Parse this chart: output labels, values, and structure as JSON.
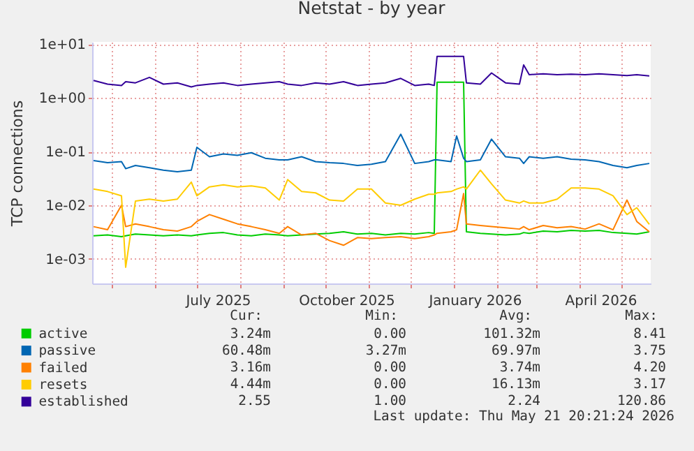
{
  "chart_data": {
    "type": "line",
    "title": "Netstat - by year",
    "ylabel": "TCP connections",
    "x": [
      "2025-04-18",
      "2025-04-28",
      "2025-05-08",
      "2025-05-11",
      "2025-05-18",
      "2025-05-28",
      "2025-06-07",
      "2025-06-17",
      "2025-06-27",
      "2025-07-01",
      "2025-07-10",
      "2025-07-20",
      "2025-07-30",
      "2025-08-09",
      "2025-08-19",
      "2025-08-29",
      "2025-09-04",
      "2025-09-14",
      "2025-09-24",
      "2025-10-04",
      "2025-10-14",
      "2025-10-24",
      "2025-11-03",
      "2025-11-13",
      "2025-11-24",
      "2025-12-04",
      "2025-12-14",
      "2025-12-18",
      "2025-12-20",
      "2025-12-30",
      "2026-01-03",
      "2026-01-08",
      "2026-01-10",
      "2026-01-20",
      "2026-01-28",
      "2026-02-07",
      "2026-02-17",
      "2026-02-20",
      "2026-02-24",
      "2026-03-06",
      "2026-03-16",
      "2026-03-26",
      "2026-04-05",
      "2026-04-15",
      "2026-04-25",
      "2026-05-05",
      "2026-05-12",
      "2026-05-21"
    ],
    "series": [
      {
        "name": "active",
        "color": "#00cc00",
        "values": [
          0.0027,
          0.0028,
          0.0026,
          0.0027,
          0.0029,
          0.0028,
          0.0027,
          0.0028,
          0.0027,
          0.0028,
          0.003,
          0.0031,
          0.0028,
          0.0027,
          0.0029,
          0.0028,
          0.0027,
          0.0028,
          0.0029,
          0.003,
          0.0032,
          0.0029,
          0.003,
          0.0028,
          0.003,
          0.0029,
          0.0031,
          0.003,
          1.95,
          1.95,
          1.95,
          1.95,
          0.0032,
          0.003,
          0.0029,
          0.0028,
          0.0029,
          0.0031,
          0.003,
          0.0033,
          0.0032,
          0.0034,
          0.0033,
          0.0034,
          0.0031,
          0.003,
          0.0029,
          0.0032
        ]
      },
      {
        "name": "passive",
        "color": "#0066b3",
        "values": [
          0.068,
          0.062,
          0.065,
          0.048,
          0.055,
          0.05,
          0.045,
          0.042,
          0.045,
          0.12,
          0.08,
          0.09,
          0.085,
          0.095,
          0.075,
          0.07,
          0.07,
          0.08,
          0.065,
          0.062,
          0.06,
          0.055,
          0.058,
          0.065,
          0.21,
          0.06,
          0.065,
          0.07,
          0.07,
          0.065,
          0.195,
          0.075,
          0.065,
          0.07,
          0.17,
          0.08,
          0.075,
          0.06,
          0.08,
          0.075,
          0.08,
          0.072,
          0.07,
          0.065,
          0.055,
          0.05,
          0.055,
          0.06
        ]
      },
      {
        "name": "failed",
        "color": "#ff8000",
        "values": [
          0.004,
          0.0035,
          0.01,
          0.004,
          0.0045,
          0.004,
          0.0035,
          0.0033,
          0.004,
          0.005,
          0.0067,
          0.0055,
          0.0045,
          0.004,
          0.0035,
          0.003,
          0.004,
          0.0028,
          0.003,
          0.0022,
          0.0018,
          0.0025,
          0.0024,
          0.0025,
          0.0026,
          0.0024,
          0.0026,
          0.0028,
          0.003,
          0.0032,
          0.0035,
          0.0165,
          0.0045,
          0.0042,
          0.004,
          0.0038,
          0.0036,
          0.004,
          0.0035,
          0.0042,
          0.0038,
          0.004,
          0.0036,
          0.0045,
          0.0035,
          0.0125,
          0.005,
          0.0032
        ]
      },
      {
        "name": "resets",
        "color": "#ffcc00",
        "values": [
          0.02,
          0.018,
          0.015,
          0.0007,
          0.012,
          0.013,
          0.012,
          0.013,
          0.027,
          0.015,
          0.022,
          0.024,
          0.022,
          0.023,
          0.021,
          0.0125,
          0.03,
          0.018,
          0.017,
          0.0125,
          0.012,
          0.02,
          0.02,
          0.011,
          0.01,
          0.013,
          0.016,
          0.016,
          0.017,
          0.018,
          0.02,
          0.022,
          0.02,
          0.045,
          0.025,
          0.0125,
          0.011,
          0.012,
          0.011,
          0.011,
          0.013,
          0.021,
          0.021,
          0.02,
          0.015,
          0.0067,
          0.009,
          0.0044
        ]
      },
      {
        "name": "established",
        "color": "#330099",
        "values": [
          2.1,
          1.8,
          1.7,
          2.0,
          1.9,
          2.4,
          1.8,
          1.9,
          1.6,
          1.7,
          1.8,
          1.9,
          1.7,
          1.8,
          1.9,
          2.0,
          1.8,
          1.7,
          1.9,
          1.8,
          2.0,
          1.7,
          1.8,
          1.9,
          2.3,
          1.7,
          1.8,
          1.7,
          5.9,
          5.9,
          5.9,
          5.9,
          1.9,
          1.8,
          2.9,
          1.9,
          1.8,
          4.1,
          2.7,
          2.8,
          2.7,
          2.75,
          2.7,
          2.8,
          2.7,
          2.6,
          2.7,
          2.55
        ]
      }
    ],
    "xlim": [
      "2025-04-17",
      "2026-05-22"
    ],
    "xticks": [
      {
        "value": "2025-05-01",
        "label": null
      },
      {
        "value": "2025-06-01",
        "label": null
      },
      {
        "value": "2025-07-01",
        "label": null
      },
      {
        "value": "2025-07-16",
        "label": "July 2025"
      },
      {
        "value": "2025-08-01",
        "label": null
      },
      {
        "value": "2025-09-01",
        "label": null
      },
      {
        "value": "2025-10-01",
        "label": null
      },
      {
        "value": "2025-10-16",
        "label": "October 2025"
      },
      {
        "value": "2025-11-01",
        "label": null
      },
      {
        "value": "2025-12-01",
        "label": null
      },
      {
        "value": "2026-01-01",
        "label": null
      },
      {
        "value": "2026-01-16",
        "label": "January 2026"
      },
      {
        "value": "2026-02-01",
        "label": null
      },
      {
        "value": "2026-03-01",
        "label": null
      },
      {
        "value": "2026-04-01",
        "label": null
      },
      {
        "value": "2026-04-16",
        "label": "April 2026"
      },
      {
        "value": "2026-05-01",
        "label": null
      }
    ],
    "ylim": [
      0.00035,
      11
    ],
    "yticks": [
      {
        "value": 0.001,
        "label": "1e-03"
      },
      {
        "value": 0.01,
        "label": "1e-02"
      },
      {
        "value": 0.1,
        "label": "1e-01"
      },
      {
        "value": 1,
        "label": "1e+00"
      },
      {
        "value": 10,
        "label": "1e+01"
      }
    ],
    "log": "y",
    "grid": true,
    "legend": "bottom left",
    "annotations": [
      "Cur:",
      "Min:",
      "Avg:",
      "Max:",
      "3.24m",
      "0.00",
      "101.32m",
      "8.41",
      "60.48m",
      "3.27m",
      "69.97m",
      "3.75",
      "3.16m",
      "0.00",
      "3.74m",
      "4.20",
      "4.44m",
      "0.00",
      "16.13m",
      "3.17",
      "2.55",
      "1.00",
      "2.24",
      "120.86",
      "Last update: Thu May 21 20:21:24 2026"
    ]
  }
}
